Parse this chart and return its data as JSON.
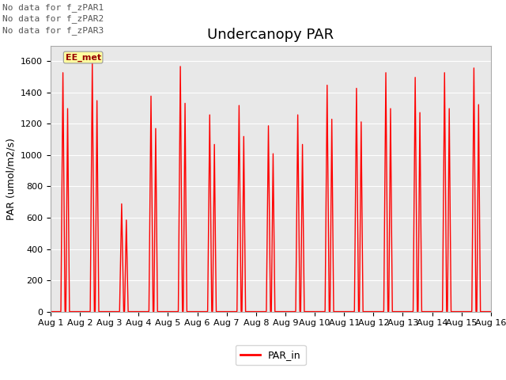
{
  "title": "Undercanopy PAR",
  "ylabel": "PAR (umol/m2/s)",
  "ylim": [
    0,
    1700
  ],
  "yticks": [
    0,
    200,
    400,
    600,
    800,
    1000,
    1200,
    1400,
    1600
  ],
  "no_data_labels": [
    "No data for f_zPAR1",
    "No data for f_zPAR2",
    "No data for f_zPAR3"
  ],
  "ee_met_label": "EE_met",
  "legend_label": "PAR_in",
  "line_color": "#FF0000",
  "line_width": 1.0,
  "plot_bg_color": "#E8E8E8",
  "fig_bg_color": "#FFFFFF",
  "grid_color": "#FFFFFF",
  "n_days": 15,
  "day_peaks": [
    1530,
    1590,
    690,
    1380,
    1570,
    1260,
    1320,
    1190,
    1260,
    1450,
    1430,
    1530,
    1500,
    1530,
    1560
  ],
  "title_fontsize": 13,
  "axis_fontsize": 9,
  "tick_fontsize": 8,
  "no_data_fontsize": 8
}
